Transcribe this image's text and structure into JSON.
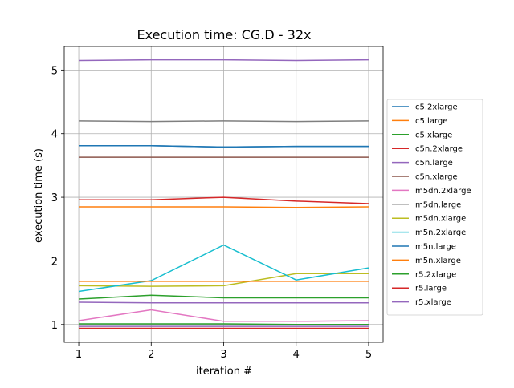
{
  "chart_data": {
    "type": "line",
    "title": "Execution time: CG.D - 32x",
    "xlabel": "iteration #",
    "ylabel": "execution time (s)",
    "x": [
      1,
      2,
      3,
      4,
      5
    ],
    "xticks": [
      "1",
      "2",
      "3",
      "4",
      "5"
    ],
    "yticks": [
      "1",
      "2",
      "3",
      "4",
      "5"
    ],
    "xlim": [
      0.8,
      5.2
    ],
    "ylim": [
      0.72,
      5.37
    ],
    "grid": true,
    "legend_position": "right",
    "series": [
      {
        "name": "c5.2xlarge",
        "color": "#1f77b4",
        "values": [
          3.81,
          3.81,
          3.79,
          3.8,
          3.8
        ]
      },
      {
        "name": "c5.large",
        "color": "#ff7f0e",
        "values": [
          2.85,
          2.85,
          2.85,
          2.84,
          2.85
        ]
      },
      {
        "name": "c5.xlarge",
        "color": "#2ca02c",
        "values": [
          1.01,
          1.01,
          1.01,
          1.0,
          1.0
        ]
      },
      {
        "name": "c5n.2xlarge",
        "color": "#d62728",
        "values": [
          0.94,
          0.94,
          0.94,
          0.94,
          0.94
        ]
      },
      {
        "name": "c5n.large",
        "color": "#9467bd",
        "values": [
          0.97,
          0.97,
          0.97,
          0.97,
          0.97
        ]
      },
      {
        "name": "c5n.xlarge",
        "color": "#8c564b",
        "values": [
          3.63,
          3.63,
          3.63,
          3.63,
          3.63
        ]
      },
      {
        "name": "m5dn.2xlarge",
        "color": "#e377c2",
        "values": [
          1.06,
          1.23,
          1.05,
          1.05,
          1.06
        ]
      },
      {
        "name": "m5dn.large",
        "color": "#7f7f7f",
        "values": [
          4.2,
          4.19,
          4.2,
          4.19,
          4.2
        ]
      },
      {
        "name": "m5dn.xlarge",
        "color": "#bcbd22",
        "values": [
          1.61,
          1.6,
          1.61,
          1.8,
          1.8
        ]
      },
      {
        "name": "m5n.2xlarge",
        "color": "#17becf",
        "values": [
          1.52,
          1.69,
          2.25,
          1.7,
          1.89
        ]
      },
      {
        "name": "m5n.large",
        "color": "#1f77b4",
        "values": [
          3.81,
          3.81,
          3.79,
          3.8,
          3.8
        ]
      },
      {
        "name": "m5n.xlarge",
        "color": "#ff7f0e",
        "values": [
          1.68,
          1.68,
          1.68,
          1.68,
          1.68
        ]
      },
      {
        "name": "r5.2xlarge",
        "color": "#2ca02c",
        "values": [
          1.4,
          1.46,
          1.42,
          1.42,
          1.42
        ]
      },
      {
        "name": "r5.large",
        "color": "#d62728",
        "values": [
          2.96,
          2.96,
          3.0,
          2.94,
          2.9
        ]
      },
      {
        "name": "r5.xlarge",
        "color": "#9467bd",
        "values": [
          1.35,
          1.34,
          1.34,
          1.34,
          1.34
        ]
      },
      {
        "name": "",
        "color": "#9467bd",
        "values": [
          5.15,
          5.16,
          5.16,
          5.15,
          5.16
        ]
      }
    ]
  }
}
